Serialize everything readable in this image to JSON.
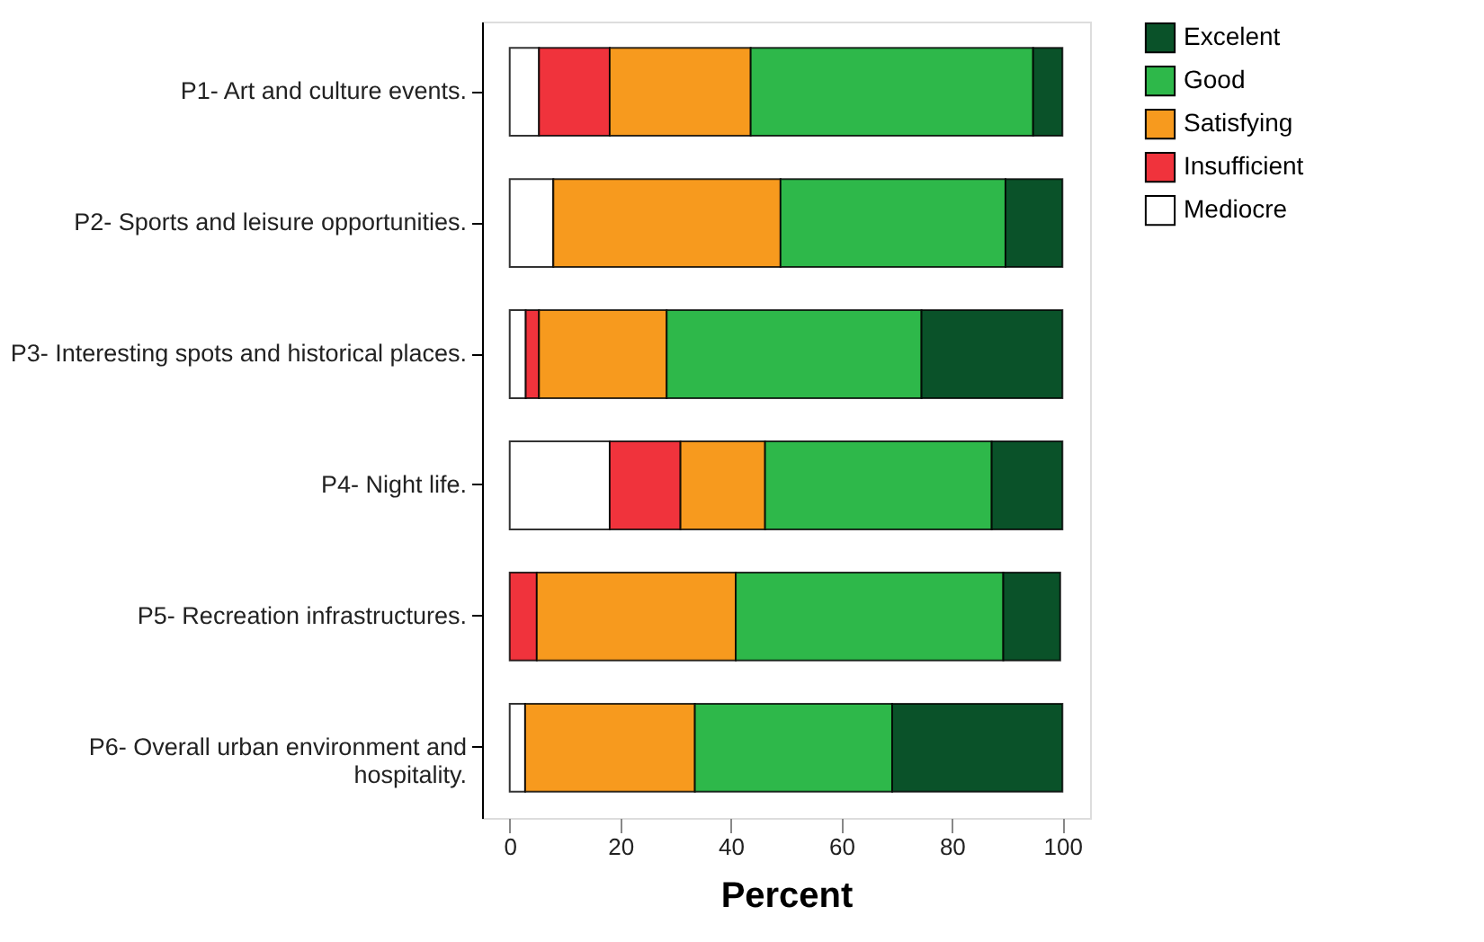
{
  "chart_data": {
    "type": "bar",
    "orientation": "horizontal",
    "stacked": true,
    "xlabel": "Percent",
    "categories": [
      "P1- Art and culture events.",
      "P2- Sports and leisure opportunities.",
      "P3- Interesting spots and historical places.",
      "P4- Night life.",
      "P5-  Recreation infrastructures.",
      "P6- Overall urban environment and hospitality."
    ],
    "series": [
      {
        "name": "Mediocre",
        "color": "#ffffff",
        "values": [
          5.3,
          7.9,
          2.9,
          18.1,
          null,
          2.8
        ]
      },
      {
        "name": "Insufficient",
        "color": "#f0333c",
        "values": [
          12.8,
          0,
          2.4,
          12.8,
          4.9,
          0
        ]
      },
      {
        "name": "Satisfying",
        "color": "#f79a1e",
        "values": [
          25.5,
          41.1,
          23.1,
          15.3,
          36.0,
          30.7
        ]
      },
      {
        "name": "Good",
        "color": "#2eb84a",
        "values": [
          51.1,
          40.7,
          46.1,
          41.0,
          48.4,
          35.7
        ]
      },
      {
        "name": "Excelent",
        "color": "#0a5229",
        "values": [
          5.3,
          10.3,
          25.5,
          12.8,
          10.3,
          30.8
        ]
      }
    ],
    "xlim": [
      -5,
      105
    ],
    "xticks": [
      0,
      20,
      40,
      60,
      80,
      100
    ],
    "grid": false,
    "legend": "right"
  }
}
